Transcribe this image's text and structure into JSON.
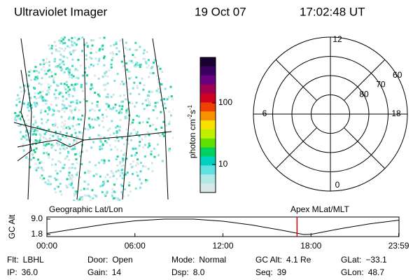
{
  "header": {
    "title": "Ultraviolet Imager",
    "date": "19 Oct 07",
    "time": "17:02:48 UT"
  },
  "image": {
    "label": "Geographic Lat/Lon"
  },
  "colorbar": {
    "label": "photon cm",
    "exp1": "-2",
    "unit2": "s",
    "exp2": "-1",
    "log_scale": true,
    "clim": [
      3.5,
      550
    ],
    "ticks": [
      10,
      100
    ],
    "colors": [
      "#1a0030",
      "#3a0060",
      "#6a0080",
      "#a00050",
      "#d00020",
      "#f04000",
      "#f89000",
      "#f8e000",
      "#c0f000",
      "#60e000",
      "#00d060",
      "#00d0c0",
      "#60e0e0",
      "#b0e8e8",
      "#d8e8e8"
    ]
  },
  "polar": {
    "label": "Apex MLat/MLT",
    "rlim": [
      90,
      50
    ],
    "rings": [
      50,
      60,
      70,
      80
    ],
    "ring_labels": [
      60,
      70,
      80
    ],
    "hours": [
      12,
      6,
      0,
      18
    ]
  },
  "chart_data": {
    "type": "line",
    "ylabel": "GC Alt",
    "color": "#000000",
    "x": [
      0,
      2,
      4,
      6,
      8,
      10,
      12,
      14,
      16,
      17.5,
      18,
      20,
      22,
      24
    ],
    "values": [
      2.3,
      4.5,
      6.6,
      8.2,
      9.0,
      9.0,
      8.0,
      6.2,
      3.8,
      1.8,
      1.9,
      4.5,
      6.8,
      8.5
    ],
    "xlim": [
      0,
      24
    ],
    "ylim": [
      1.8,
      9.0
    ],
    "yticks": [
      {
        "value": 9.0,
        "label": "9.0"
      },
      {
        "value": 1.8,
        "label": "1.8"
      }
    ],
    "xticks": [
      {
        "value": 0,
        "label": "00:00"
      },
      {
        "value": 6,
        "label": "06:00"
      },
      {
        "value": 12,
        "label": "12:00"
      },
      {
        "value": 18,
        "label": "18:00"
      },
      {
        "value": 23.98,
        "label": "23:59"
      }
    ],
    "marker_x": 17.05,
    "marker_color": "#e00000"
  },
  "info": {
    "rows": [
      [
        {
          "label": "Flt:",
          "value": "LBHL"
        },
        {
          "label": "Door:",
          "value": "Open"
        },
        {
          "label": "Mode:",
          "value": "Normal"
        },
        {
          "label": "GC Alt:",
          "value": "4.1 Re"
        },
        {
          "label": "GLat:",
          "value": "−33.1"
        }
      ],
      [
        {
          "label": "IP:",
          "value": "36.0"
        },
        {
          "label": "Gain:",
          "value": "14"
        },
        {
          "label": "Dsp:",
          "value": "8.0"
        },
        {
          "label": "Seq:",
          "value": "39"
        },
        {
          "label": "GLon:",
          "value": "48.7"
        }
      ]
    ]
  }
}
